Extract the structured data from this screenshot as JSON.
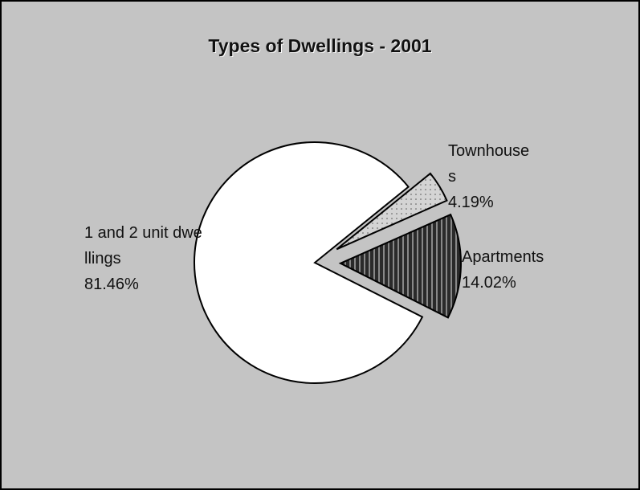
{
  "chart_data": {
    "type": "pie",
    "title": "Types of Dwellings - 2001",
    "categories": [
      "Townhouses",
      "Apartments",
      "1 and 2 unit dwellings"
    ],
    "values": [
      4.19,
      14.02,
      81.46
    ],
    "value_labels": [
      "4.19%",
      "14.02%",
      "81.46%"
    ],
    "colors": [
      "#d4d4d4",
      "#2a2a2a",
      "#ffffff"
    ]
  }
}
